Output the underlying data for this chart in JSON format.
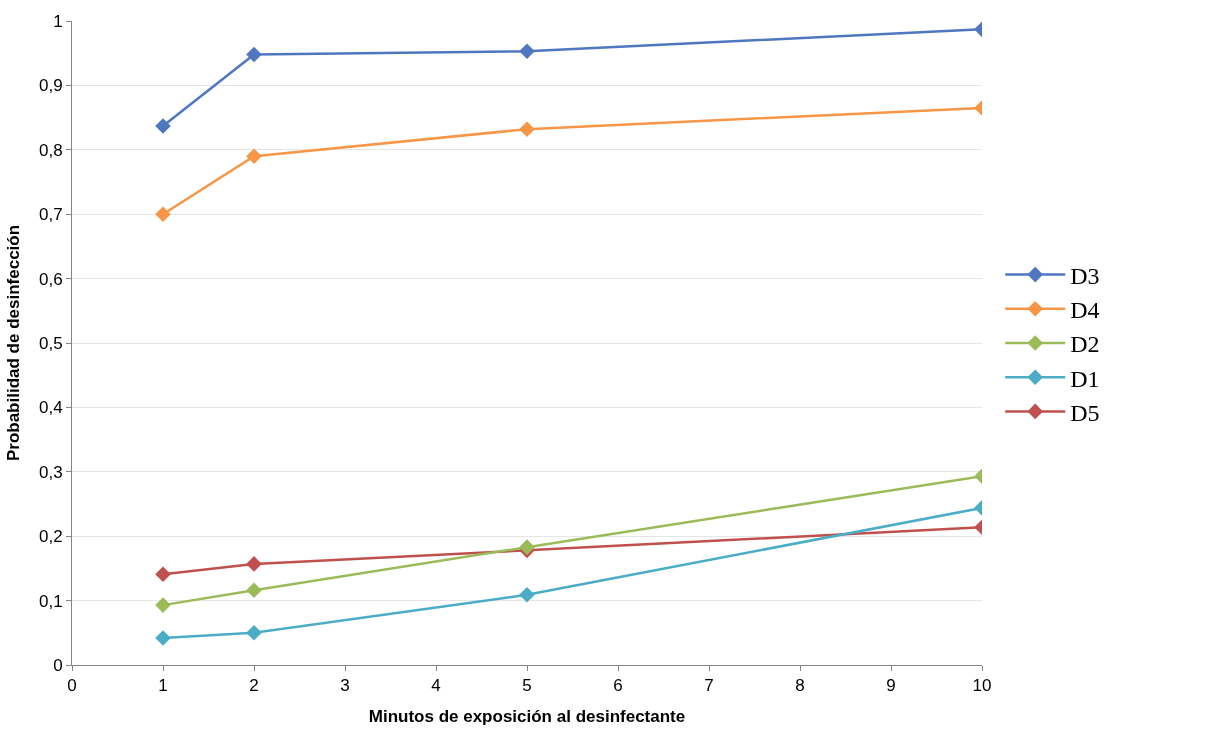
{
  "chart_data": {
    "type": "line",
    "xlabel": "Minutos de exposición al desinfectante",
    "ylabel": "Probabilidad de desinfección",
    "x": [
      1,
      2,
      5,
      10
    ],
    "series": [
      {
        "name": "D3",
        "color": "#4f77c0",
        "values": [
          0.837,
          0.948,
          0.953,
          0.987
        ]
      },
      {
        "name": "D4",
        "color": "#f79646",
        "values": [
          0.7,
          0.79,
          0.832,
          0.865
        ]
      },
      {
        "name": "D2",
        "color": "#9bbb59",
        "values": [
          0.093,
          0.116,
          0.183,
          0.293
        ]
      },
      {
        "name": "D1",
        "color": "#4bacc6",
        "values": [
          0.042,
          0.05,
          0.109,
          0.244
        ]
      },
      {
        "name": "D5",
        "color": "#c0504d",
        "values": [
          0.141,
          0.157,
          0.178,
          0.214
        ]
      }
    ],
    "xlim": [
      0,
      10
    ],
    "xticks": [
      0,
      1,
      2,
      3,
      4,
      5,
      6,
      7,
      8,
      9,
      10
    ],
    "ylim": [
      0,
      1
    ],
    "yticks": [
      {
        "value": 0,
        "label": "0"
      },
      {
        "value": 0.1,
        "label": "0,1"
      },
      {
        "value": 0.2,
        "label": "0,2"
      },
      {
        "value": 0.3,
        "label": "0,3"
      },
      {
        "value": 0.4,
        "label": "0,4"
      },
      {
        "value": 0.5,
        "label": "0,5"
      },
      {
        "value": 0.6,
        "label": "0,6"
      },
      {
        "value": 0.7,
        "label": "0,7"
      },
      {
        "value": 0.8,
        "label": "0,8"
      },
      {
        "value": 0.9,
        "label": "0,9"
      },
      {
        "value": 1,
        "label": "1"
      }
    ],
    "grid": "y",
    "legend": "right",
    "marker": "diamond",
    "line_style": "solid"
  }
}
